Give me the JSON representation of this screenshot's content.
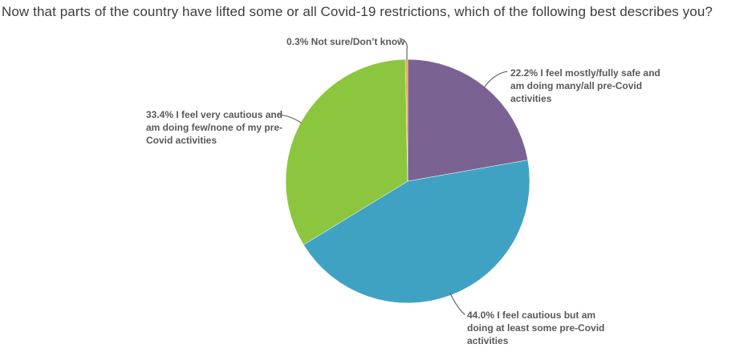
{
  "colors": {
    "background": "#ffffff",
    "title_text": "#3d3d3d",
    "label_text": "#595959",
    "leader_line": "#595959"
  },
  "chart_data": {
    "type": "pie",
    "title": "Now that parts of the country have lifted some or all Covid-19 restrictions, which of the following best describes you?",
    "start_angle_deg": 0,
    "direction": "clockwise",
    "legend_position": "none (callout labels with leader lines)",
    "slices": [
      {
        "name": "mostly-fully-safe",
        "pct": 22.2,
        "color": "#7a6292",
        "label": "I feel mostly/fully safe and am doing many/all pre-Covid activities",
        "callout_lines": [
          "22.2% I feel mostly/fully safe and",
          "am doing many/all pre-Covid",
          "activities"
        ]
      },
      {
        "name": "cautious-some-activities",
        "pct": 44.0,
        "color": "#3fa2c2",
        "label": "I feel cautious but am doing at least some pre-Covid activities",
        "callout_lines": [
          "44.0% I feel cautious but am",
          "doing at least some pre-Covid",
          "activities"
        ]
      },
      {
        "name": "very-cautious",
        "pct": 33.4,
        "color": "#8cc63e",
        "label": "I feel very cautious and am doing few/none of my pre-Covid activities",
        "callout_lines": [
          "33.4% I feel very cautious and",
          "am doing few/none of my pre-",
          "Covid activities"
        ]
      },
      {
        "name": "not-sure",
        "pct": 0.3,
        "color": "#f0a32e",
        "label": "Not sure/Don’t know",
        "callout_lines": [
          "0.3% Not sure/Don’t know"
        ]
      }
    ]
  }
}
